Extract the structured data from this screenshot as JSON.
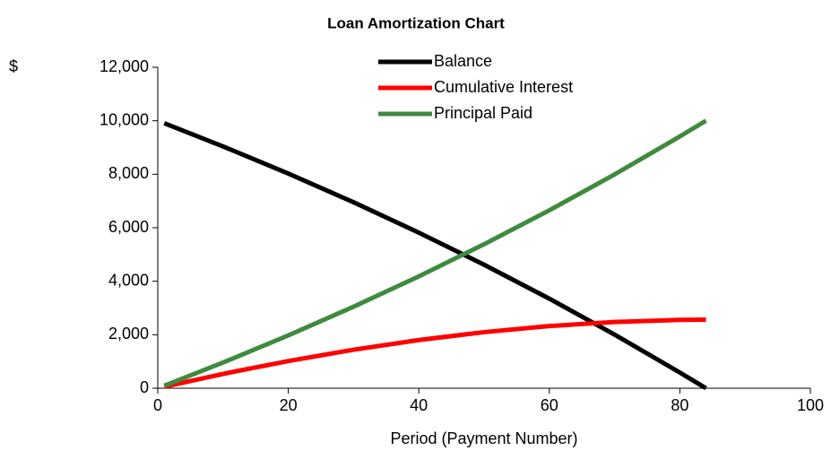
{
  "chart_data": {
    "type": "line",
    "title": "Loan Amortization Chart",
    "x_label": "Period (Payment Number)",
    "y_label": "$",
    "x": [
      1,
      10,
      20,
      30,
      40,
      50,
      60,
      70,
      80,
      84
    ],
    "series": [
      {
        "name": "Balance",
        "color": "#000000",
        "values": [
          9906,
          9040,
          8025,
          6952,
          5817,
          4617,
          3348,
          2006,
          587,
          0
        ]
      },
      {
        "name": "Cumulative Interest",
        "color": "#ff0000",
        "values": [
          56,
          536,
          1017,
          1440,
          1801,
          2097,
          2324,
          2478,
          2555,
          2566
        ]
      },
      {
        "name": "Principal Paid",
        "color": "#3f8a3f",
        "values": [
          94,
          960,
          1975,
          3048,
          4183,
          5383,
          6652,
          7994,
          9413,
          10000
        ]
      }
    ],
    "xlim": [
      0,
      100
    ],
    "xticks": [
      0,
      20,
      40,
      60,
      80,
      100
    ],
    "ylim": [
      0,
      12000
    ],
    "yticks": [
      0,
      {
        "value": 2000,
        "label": "2,000"
      },
      {
        "value": 4000,
        "label": "4,000"
      },
      {
        "value": 6000,
        "label": "6,000"
      },
      {
        "value": 8000,
        "label": "8,000"
      },
      {
        "value": 10000,
        "label": "10,000"
      },
      {
        "value": 12000,
        "label": "12,000"
      }
    ],
    "grid": false,
    "legend": "top"
  }
}
